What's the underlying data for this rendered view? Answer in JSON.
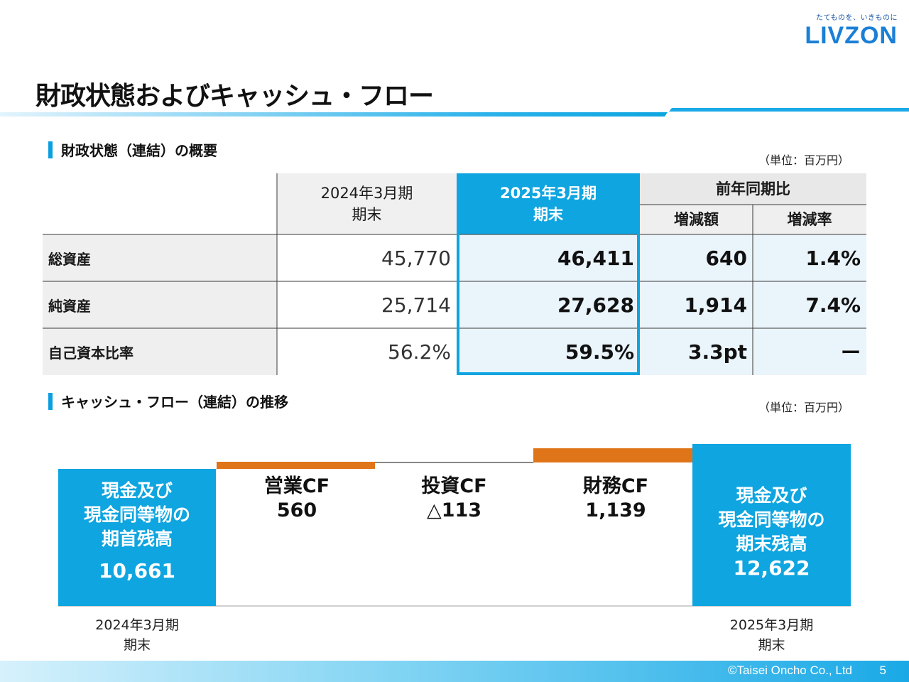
{
  "logo": {
    "tagline": "たてものを、いきものに",
    "name": "LIVZON"
  },
  "title": "財政状態およびキャッシュ・フロー",
  "balance": {
    "heading": "財政状態（連結）の概要",
    "unit": "（単位：百万円）",
    "headers": {
      "prev_line1": "2024年3月期",
      "prev_line2": "期末",
      "curr_line1": "2025年3月期",
      "curr_line2": "期末",
      "yoy": "前年同期比",
      "change": "増減額",
      "rate": "増減率"
    },
    "rows": [
      {
        "label": "総資産",
        "prev": "45,770",
        "curr": "46,411",
        "change": "640",
        "rate": "1.4%"
      },
      {
        "label": "純資産",
        "prev": "25,714",
        "curr": "27,628",
        "change": "1,914",
        "rate": "7.4%"
      },
      {
        "label": "自己資本比率",
        "prev": "56.2%",
        "curr": "59.5%",
        "change": "3.3pt",
        "rate": "ー"
      }
    ]
  },
  "cashflow": {
    "heading": "キャッシュ・フロー（連結）の推移",
    "unit": "（単位：百万円）",
    "begin": {
      "line1": "現金及び",
      "line2": "現金同等物の",
      "line3": "期首残高",
      "value": "10,661"
    },
    "operating": {
      "label": "営業CF",
      "value": "560"
    },
    "investing": {
      "label": "投資CF",
      "value": "△113"
    },
    "financing": {
      "label": "財務CF",
      "value": "1,139"
    },
    "end": {
      "line1": "現金及び",
      "line2": "現金同等物の",
      "line3": "期末残高",
      "value": "12,622"
    },
    "begin_period": {
      "line1": "2024年3月期",
      "line2": "期末"
    },
    "end_period": {
      "line1": "2025年3月期",
      "line2": "期末"
    },
    "colors": {
      "balance": "#0ea5e0",
      "increase": "#e07418",
      "decrease": "#888888"
    }
  },
  "footer": {
    "copyright": "©Taisei Oncho Co., Ltd",
    "page": "5"
  }
}
